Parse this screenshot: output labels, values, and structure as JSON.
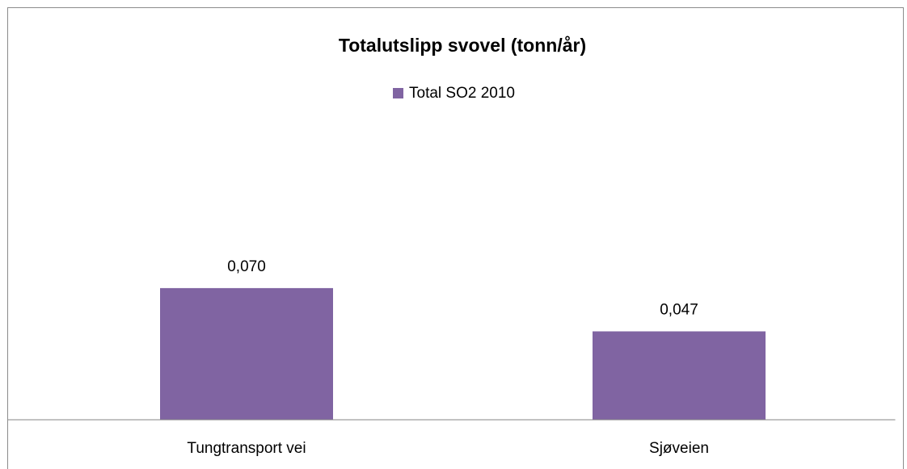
{
  "chart_data": {
    "type": "bar",
    "title": "Totalutslipp svovel (tonn/år)",
    "categories": [
      "Tungtransport vei",
      "Sjøveien"
    ],
    "series": [
      {
        "name": "Total SO2 2010",
        "color": "#8064a2",
        "values": [
          0.07,
          0.047
        ],
        "value_labels": [
          "0,070",
          "0,047"
        ]
      }
    ],
    "ylim": [
      0,
      0.1
    ],
    "legend": "top"
  }
}
